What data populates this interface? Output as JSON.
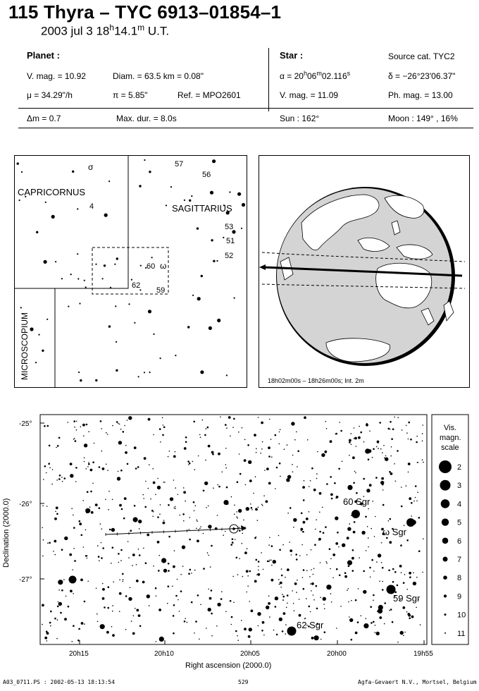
{
  "header": {
    "title": "115 Thyra  –  TYC 6913–01854–1",
    "subtitle_date": "2003 jul  3  18",
    "subtitle_h": "h",
    "subtitle_min": "14.1",
    "subtitle_m": "m",
    "subtitle_ut": " U.T."
  },
  "planet": {
    "heading": "Planet :",
    "vmag": "V. mag. = 10.92",
    "diam": "Diam. = 63.5 km = 0.08\"",
    "mu": "μ =  34.29\"/h",
    "pi": "π =  5.85\"",
    "ref": "Ref. = MPO2601"
  },
  "star": {
    "heading": "Star :",
    "source": "Source cat.  TYC2",
    "alpha_prefix": "α = 20",
    "alpha_h": "h",
    "alpha_min": "06",
    "alpha_m": "m",
    "alpha_sec": "02.116",
    "alpha_s": "s",
    "delta": "δ = −26°23'06.37\"",
    "vmag": "V. mag. = 11.09",
    "phmag": "Ph. mag. = 13.00"
  },
  "event": {
    "dm": "Δm = 0.7",
    "maxdur": "Max. dur. = 8.0s",
    "sun": "Sun : 162°",
    "moon": "Moon : 149° , 16%"
  },
  "finder": {
    "constellations": [
      "CAPRICORNUS",
      "SAGITTARIUS",
      "MICROSCOPIUM"
    ],
    "star_labels": [
      "σ",
      "4",
      "57",
      "56",
      "53",
      "51",
      "52",
      "60",
      "ω",
      "62",
      "59"
    ]
  },
  "globe": {
    "caption": "18h02m00s – 18h26m00s; Int.  2m"
  },
  "starchart": {
    "ylabel": "Declination (2000.0)",
    "xlabel": "Right ascension (2000.0)",
    "dec_ticks": [
      "-25°",
      "-26°",
      "-27°"
    ],
    "ra_ticks": [
      "20h15",
      "20h10",
      "20h05",
      "20h00",
      "19h55"
    ],
    "star_labels": [
      "60 Sgr",
      "ω Sgr",
      "59 Sgr",
      "62 Sgr"
    ]
  },
  "legend": {
    "title_lines": [
      "Vis.",
      "magn.",
      "scale"
    ],
    "magnitudes": [
      "2",
      "3",
      "4",
      "5",
      "6",
      "7",
      "8",
      "9",
      "10",
      "11"
    ]
  },
  "footer": {
    "left": "A03_0711.PS : 2002-05-13 18:13:54",
    "center": "529",
    "right": "Agfa-Gevaert N.V., Mortsel, Belgium"
  }
}
